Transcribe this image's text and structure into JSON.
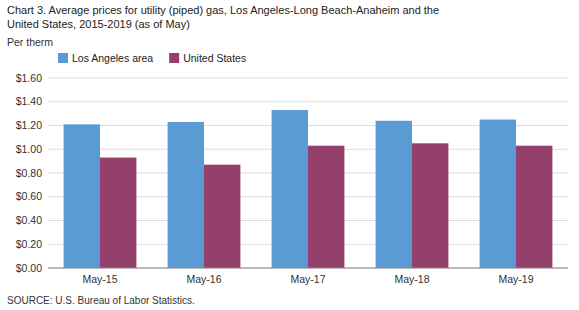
{
  "chart_data": {
    "type": "bar",
    "title": "Chart 3. Average prices for utility (piped) gas, Los Angeles-Long Beach-Anaheim and the",
    "subtitle": "United States, 2015-2019  (as of May)",
    "y_label": "Per therm",
    "source": "SOURCE: U.S. Bureau of Labor Statistics.",
    "categories": [
      "May-15",
      "May-16",
      "May-17",
      "May-18",
      "May-19"
    ],
    "series": [
      {
        "name": "Los Angeles area",
        "color": "#5B9BD5",
        "values": [
          1.21,
          1.23,
          1.33,
          1.24,
          1.25
        ]
      },
      {
        "name": "United States",
        "color": "#943F6C",
        "values": [
          0.93,
          0.87,
          1.03,
          1.05,
          1.03
        ]
      }
    ],
    "ylim": [
      0,
      1.6
    ],
    "yticks": [
      {
        "value": 0.0,
        "label": "$0.00"
      },
      {
        "value": 0.2,
        "label": "$0.20"
      },
      {
        "value": 0.4,
        "label": "$0.40"
      },
      {
        "value": 0.6,
        "label": "$0.60"
      },
      {
        "value": 0.8,
        "label": "$0.80"
      },
      {
        "value": 1.0,
        "label": "$1.00"
      },
      {
        "value": 1.2,
        "label": "$1.20"
      },
      {
        "value": 1.4,
        "label": "$1.40"
      },
      {
        "value": 1.6,
        "label": "$1.60"
      }
    ],
    "grid": true,
    "legend": "upper left"
  }
}
